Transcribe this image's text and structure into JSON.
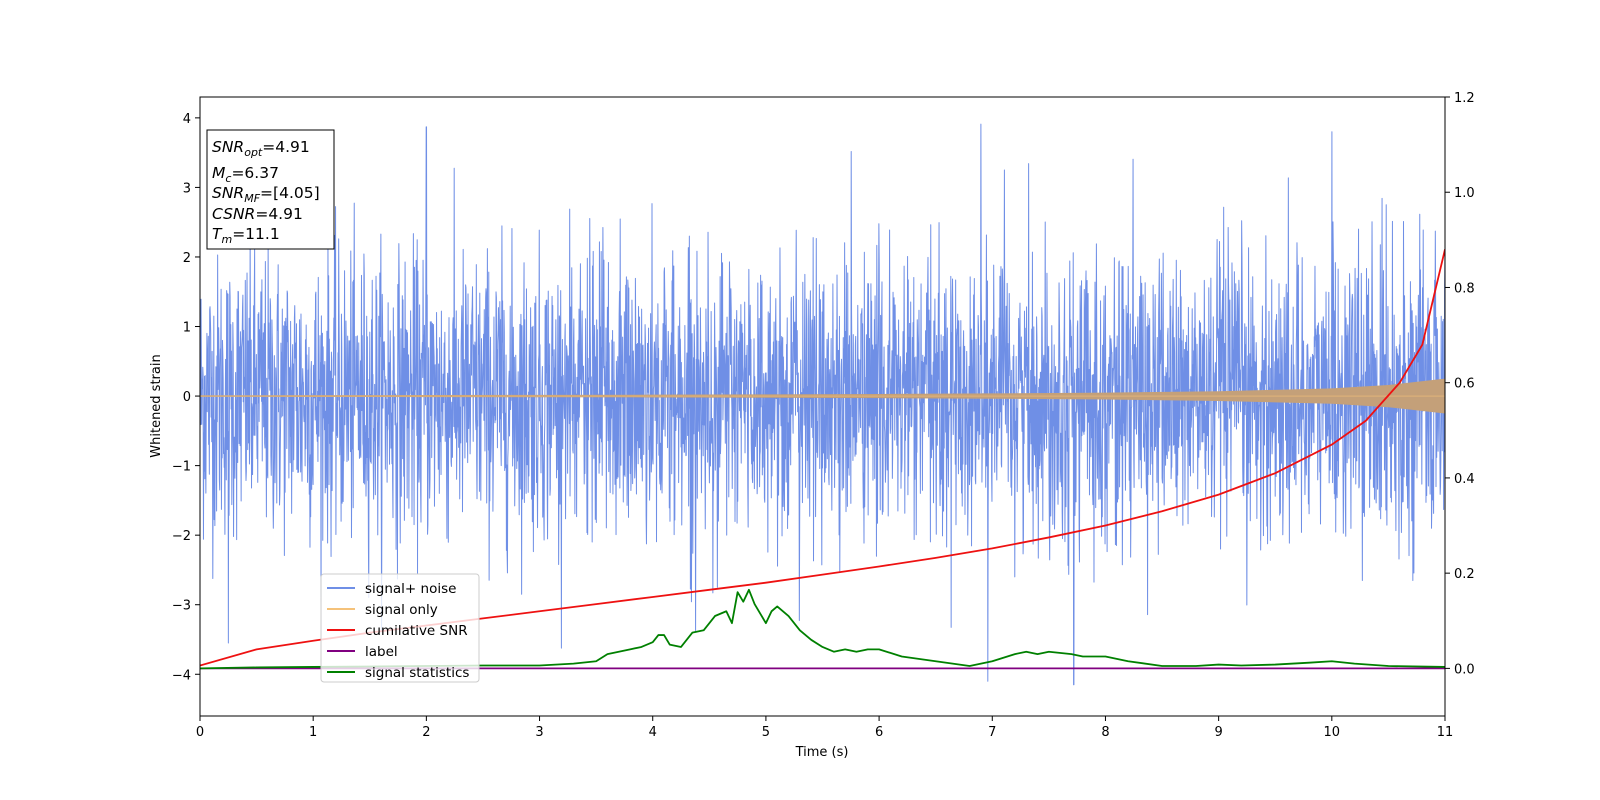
{
  "chart_data": {
    "type": "line",
    "xlabel": "Time (s)",
    "ylabel": "Whitened strain",
    "xlim": [
      0,
      11
    ],
    "ylim_left": [
      -4.6,
      4.3
    ],
    "ylim_right": [
      -0.1,
      1.2
    ],
    "x_ticks": [
      "0",
      "1",
      "2",
      "3",
      "4",
      "5",
      "6",
      "7",
      "8",
      "9",
      "10",
      "11"
    ],
    "y_ticks_left": [
      "4",
      "3",
      "2",
      "1",
      "0",
      "−1",
      "−2",
      "−3",
      "−4"
    ],
    "y_ticks_right": [
      "1.2",
      "1.0",
      "0.8",
      "0.6",
      "0.4",
      "0.2",
      "0.0"
    ],
    "grid": false,
    "legend_placement": "lower-left",
    "info_box": {
      "snr_opt": {
        "base": "SNR",
        "sub": "opt",
        "value": "=4.91"
      },
      "mc": {
        "base": "M",
        "sub": "c",
        "value": "=6.37"
      },
      "snr_mf": {
        "base": "SNR",
        "sub": "MF",
        "value": "=[4.05]"
      },
      "csnr": {
        "base": "CSNR",
        "value": "=4.91"
      },
      "tm": {
        "base": "T",
        "sub": "m",
        "value": "=11.1"
      }
    },
    "series": [
      {
        "name": "signal+ noise",
        "color": "#6f8fe6",
        "axis": "left",
        "description_values": {
          "noise_amplitude_envelope": [
            -3.2,
            3.9
          ],
          "notable_peaks": [
            [
              0.25,
              -3.55
            ],
            [
              2.0,
              3.87
            ],
            [
              6.9,
              3.91
            ],
            [
              6.96,
              -4.1
            ],
            [
              7.72,
              -4.15
            ],
            [
              10.0,
              3.8
            ]
          ]
        }
      },
      {
        "name": "signal only",
        "color": "#f5c27a",
        "axis": "left",
        "amplitude_envelope": {
          "x": [
            0,
            1,
            2,
            3,
            4,
            5,
            6,
            7,
            8,
            9,
            10,
            10.5,
            11
          ],
          "y": [
            0.012,
            0.013,
            0.015,
            0.017,
            0.02,
            0.024,
            0.03,
            0.038,
            0.05,
            0.07,
            0.11,
            0.16,
            0.25
          ]
        }
      },
      {
        "name": "cumilative SNR",
        "color": "#ee1111",
        "axis": "right",
        "x": [
          0,
          0.5,
          1,
          1.5,
          2,
          2.5,
          3,
          3.5,
          4,
          4.5,
          5,
          5.5,
          6,
          6.5,
          7,
          7.5,
          8,
          8.5,
          9,
          9.5,
          10,
          10.3,
          10.6,
          10.8,
          11
        ],
        "y": [
          0.006,
          0.04,
          0.058,
          0.075,
          0.09,
          0.105,
          0.12,
          0.135,
          0.15,
          0.165,
          0.18,
          0.197,
          0.214,
          0.232,
          0.252,
          0.275,
          0.3,
          0.33,
          0.365,
          0.41,
          0.47,
          0.52,
          0.6,
          0.68,
          0.88
        ]
      },
      {
        "name": "label",
        "color": "#800080",
        "axis": "right",
        "x": [
          0,
          11
        ],
        "y": [
          0.0,
          0.0
        ]
      },
      {
        "name": "signal statistics",
        "color": "#008000",
        "axis": "right",
        "x": [
          0,
          0.5,
          1,
          1.5,
          2,
          2.5,
          3,
          3.3,
          3.5,
          3.6,
          3.7,
          3.8,
          3.9,
          4.0,
          4.05,
          4.1,
          4.15,
          4.25,
          4.35,
          4.45,
          4.55,
          4.65,
          4.7,
          4.75,
          4.8,
          4.85,
          4.9,
          5.0,
          5.05,
          5.1,
          5.2,
          5.3,
          5.4,
          5.5,
          5.6,
          5.7,
          5.8,
          5.9,
          6.0,
          6.2,
          6.5,
          6.8,
          7.0,
          7.2,
          7.3,
          7.4,
          7.5,
          7.7,
          7.8,
          7.9,
          8.0,
          8.2,
          8.5,
          8.8,
          9.0,
          9.2,
          9.5,
          9.8,
          10.0,
          10.2,
          10.5,
          11
        ],
        "y": [
          0.0,
          0.002,
          0.003,
          0.004,
          0.005,
          0.006,
          0.006,
          0.01,
          0.015,
          0.03,
          0.035,
          0.04,
          0.045,
          0.055,
          0.07,
          0.07,
          0.05,
          0.045,
          0.075,
          0.08,
          0.11,
          0.12,
          0.095,
          0.16,
          0.14,
          0.165,
          0.135,
          0.095,
          0.12,
          0.13,
          0.11,
          0.08,
          0.06,
          0.045,
          0.035,
          0.04,
          0.035,
          0.04,
          0.04,
          0.025,
          0.015,
          0.005,
          0.015,
          0.03,
          0.035,
          0.03,
          0.035,
          0.03,
          0.025,
          0.025,
          0.025,
          0.015,
          0.005,
          0.005,
          0.008,
          0.006,
          0.008,
          0.012,
          0.015,
          0.01,
          0.005,
          0.003
        ]
      }
    ]
  }
}
